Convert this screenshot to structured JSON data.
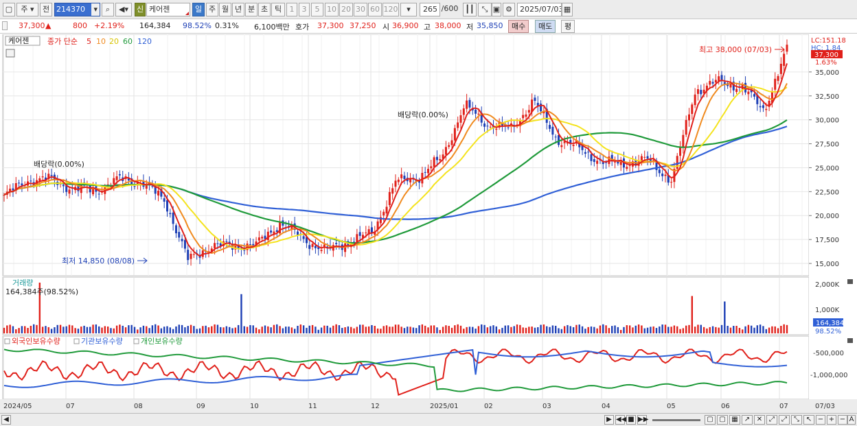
{
  "toolbar": {
    "period_type": "주",
    "prev": "전",
    "code": "214370",
    "search_icon": "magnifier-icon",
    "flag": "신",
    "stock_name": "케어젠",
    "period_buttons": [
      "일",
      "주",
      "월",
      "년",
      "분",
      "초",
      "틱"
    ],
    "interval_buttons": [
      "1",
      "3",
      "5",
      "10",
      "20",
      "30",
      "60",
      "120"
    ],
    "count": "265",
    "max": "/600",
    "date": "2025/07/03"
  },
  "quote": {
    "price": "37,300",
    "change_arrow": "▲",
    "change": "800",
    "change_pct": "+2.19%",
    "volume": "164,384",
    "vol_ratio": "98.52%",
    "turnover": "0.31%",
    "amount": "6,100백만",
    "hoga_label": "호가",
    "ask": "37,300",
    "bid": "37,250",
    "open_label": "시",
    "open": "36,900",
    "high_label": "고",
    "high": "38,000",
    "low_label": "저",
    "low": "35,850",
    "buy_label": "매수",
    "sell_label": "매도",
    "eval_label": "평"
  },
  "colors": {
    "up": "#e0201a",
    "down": "#1d3fb5",
    "ma5": "#e0201a",
    "ma10": "#f08a1e",
    "ma20": "#f4e31c",
    "ma60": "#1f9a3a",
    "ma120": "#2f5fd6",
    "foreign": "#e0201a",
    "institution": "#2f5fd6",
    "individual": "#1f9a3a"
  },
  "price_panel": {
    "stock_tag": "케어젠",
    "legend_prefix": "종가 단순",
    "legend_periods": [
      "5",
      "10",
      "20",
      "60",
      "120"
    ],
    "lc_label": "LC:151.18",
    "hc_label": "HC: 1.84",
    "current_price_badge": "37,300",
    "current_pct": "1.63%",
    "high_annotation": "최고 38,000 (07/03)",
    "low_annotation": "최저 14,850 (08/08)",
    "dividend_1": "배당락(0.00%)",
    "dividend_2": "배당락(0.00%)",
    "y_ticks": [
      "35,000",
      "32,500",
      "30,000",
      "27,500",
      "25,000",
      "22,500",
      "20,000",
      "17,500",
      "15,000"
    ]
  },
  "volume_panel": {
    "title": "거래량",
    "current": "164,384주(98.52%)",
    "y_ticks": [
      "2,000K",
      "1,000K"
    ],
    "badge": "164,384",
    "badge_pct": "98.52%"
  },
  "holding_panel": {
    "series_names": [
      "외국인보유수량",
      "기관보유수량",
      "개인보유수량"
    ],
    "y_ticks": [
      "-500,000",
      "-1,000,000"
    ]
  },
  "x_axis": {
    "labels": [
      "2024/05",
      "07",
      "08",
      "09",
      "10",
      "11",
      "12",
      "2025/01",
      "02",
      "03",
      "04",
      "05",
      "06",
      "07"
    ],
    "right_label": "07/03"
  },
  "chart_data": {
    "type": "candlestick",
    "period": "daily",
    "price_axis": {
      "min": 14000,
      "max": 38500,
      "ticks": [
        15000,
        17500,
        20000,
        22500,
        25000,
        27500,
        30000,
        32500,
        35000
      ]
    },
    "close_series": [
      {
        "date": "2024/05",
        "close": 22000
      },
      {
        "date": "2024/05 mid",
        "close": 23700
      },
      {
        "date": "2024/06",
        "close": 23800
      },
      {
        "date": "2024/06 mid",
        "close": 22800
      },
      {
        "date": "2024/07",
        "close": 22600
      },
      {
        "date": "2024/07 mid",
        "close": 23800
      },
      {
        "date": "2024/07 end",
        "close": 23500
      },
      {
        "date": "2024/08 start",
        "close": 21500
      },
      {
        "date": "2024/08/08",
        "close": 15300
      },
      {
        "date": "2024/08 mid",
        "close": 16900
      },
      {
        "date": "2024/09",
        "close": 16800
      },
      {
        "date": "2024/09 mid",
        "close": 17000
      },
      {
        "date": "2024/10",
        "close": 19300
      },
      {
        "date": "2024/10 mid",
        "close": 17500
      },
      {
        "date": "2024/11",
        "close": 16300
      },
      {
        "date": "2024/11 mid",
        "close": 17300
      },
      {
        "date": "2024/11 end",
        "close": 18200
      },
      {
        "date": "2024/12",
        "close": 23500
      },
      {
        "date": "2024/12 mid",
        "close": 24000
      },
      {
        "date": "2024/12 end",
        "close": 26000
      },
      {
        "date": "2025/01",
        "close": 31500
      },
      {
        "date": "2025/01 mid",
        "close": 29500
      },
      {
        "date": "2025/02",
        "close": 29000
      },
      {
        "date": "2025/02 mid",
        "close": 32000
      },
      {
        "date": "2025/02 end",
        "close": 28000
      },
      {
        "date": "2025/03",
        "close": 27000
      },
      {
        "date": "2025/03 mid",
        "close": 25500
      },
      {
        "date": "2025/04",
        "close": 25500
      },
      {
        "date": "2025/04 mid",
        "close": 25800
      },
      {
        "date": "2025/05",
        "close": 23600
      },
      {
        "date": "2025/05 mid",
        "close": 33000
      },
      {
        "date": "2025/06",
        "close": 34000
      },
      {
        "date": "2025/06 mid",
        "close": 33500
      },
      {
        "date": "2025/06 end",
        "close": 31000
      },
      {
        "date": "2025/07/03",
        "close": 37300
      }
    ],
    "high": {
      "date": "2025/07/03",
      "value": 38000
    },
    "low": {
      "date": "2024/08/08",
      "value": 14850
    }
  }
}
